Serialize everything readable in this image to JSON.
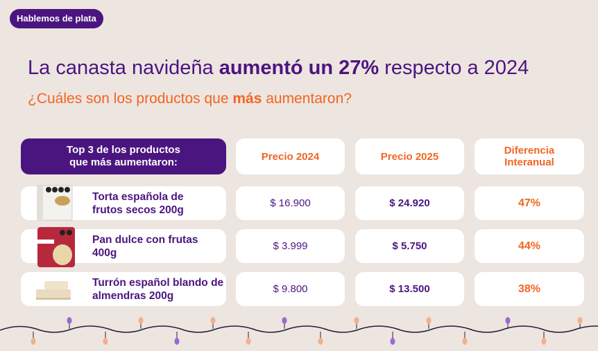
{
  "badge": "Hablemos de plata",
  "title": {
    "pre": "La canasta navideña ",
    "bold": "aumentó un 27%",
    "post": " respecto a 2024"
  },
  "subtitle": {
    "pre": "¿Cuáles son los productos que ",
    "bold": "más",
    "post": " aumentaron?"
  },
  "table": {
    "headers": [
      "Top 3 de los productos que más aumentaron:",
      "Precio 2024",
      "Precio 2025",
      "Diferencia Interanual"
    ],
    "rows": [
      {
        "product": "Torta española de frutos secos 200g",
        "price_2024": "$ 16.900",
        "price_2025": "$ 24.920",
        "diff": "47%"
      },
      {
        "product": "Pan dulce con frutas 400g",
        "price_2024": "$ 3.999",
        "price_2025": "$ 5.750",
        "diff": "44%"
      },
      {
        "product": "Turrón español blando de almendras 200g",
        "price_2024": "$ 9.800",
        "price_2025": "$ 13.500",
        "diff": "38%"
      }
    ]
  },
  "colors": {
    "purple": "#4b1580",
    "orange": "#f26522",
    "background": "#ede5e0"
  }
}
